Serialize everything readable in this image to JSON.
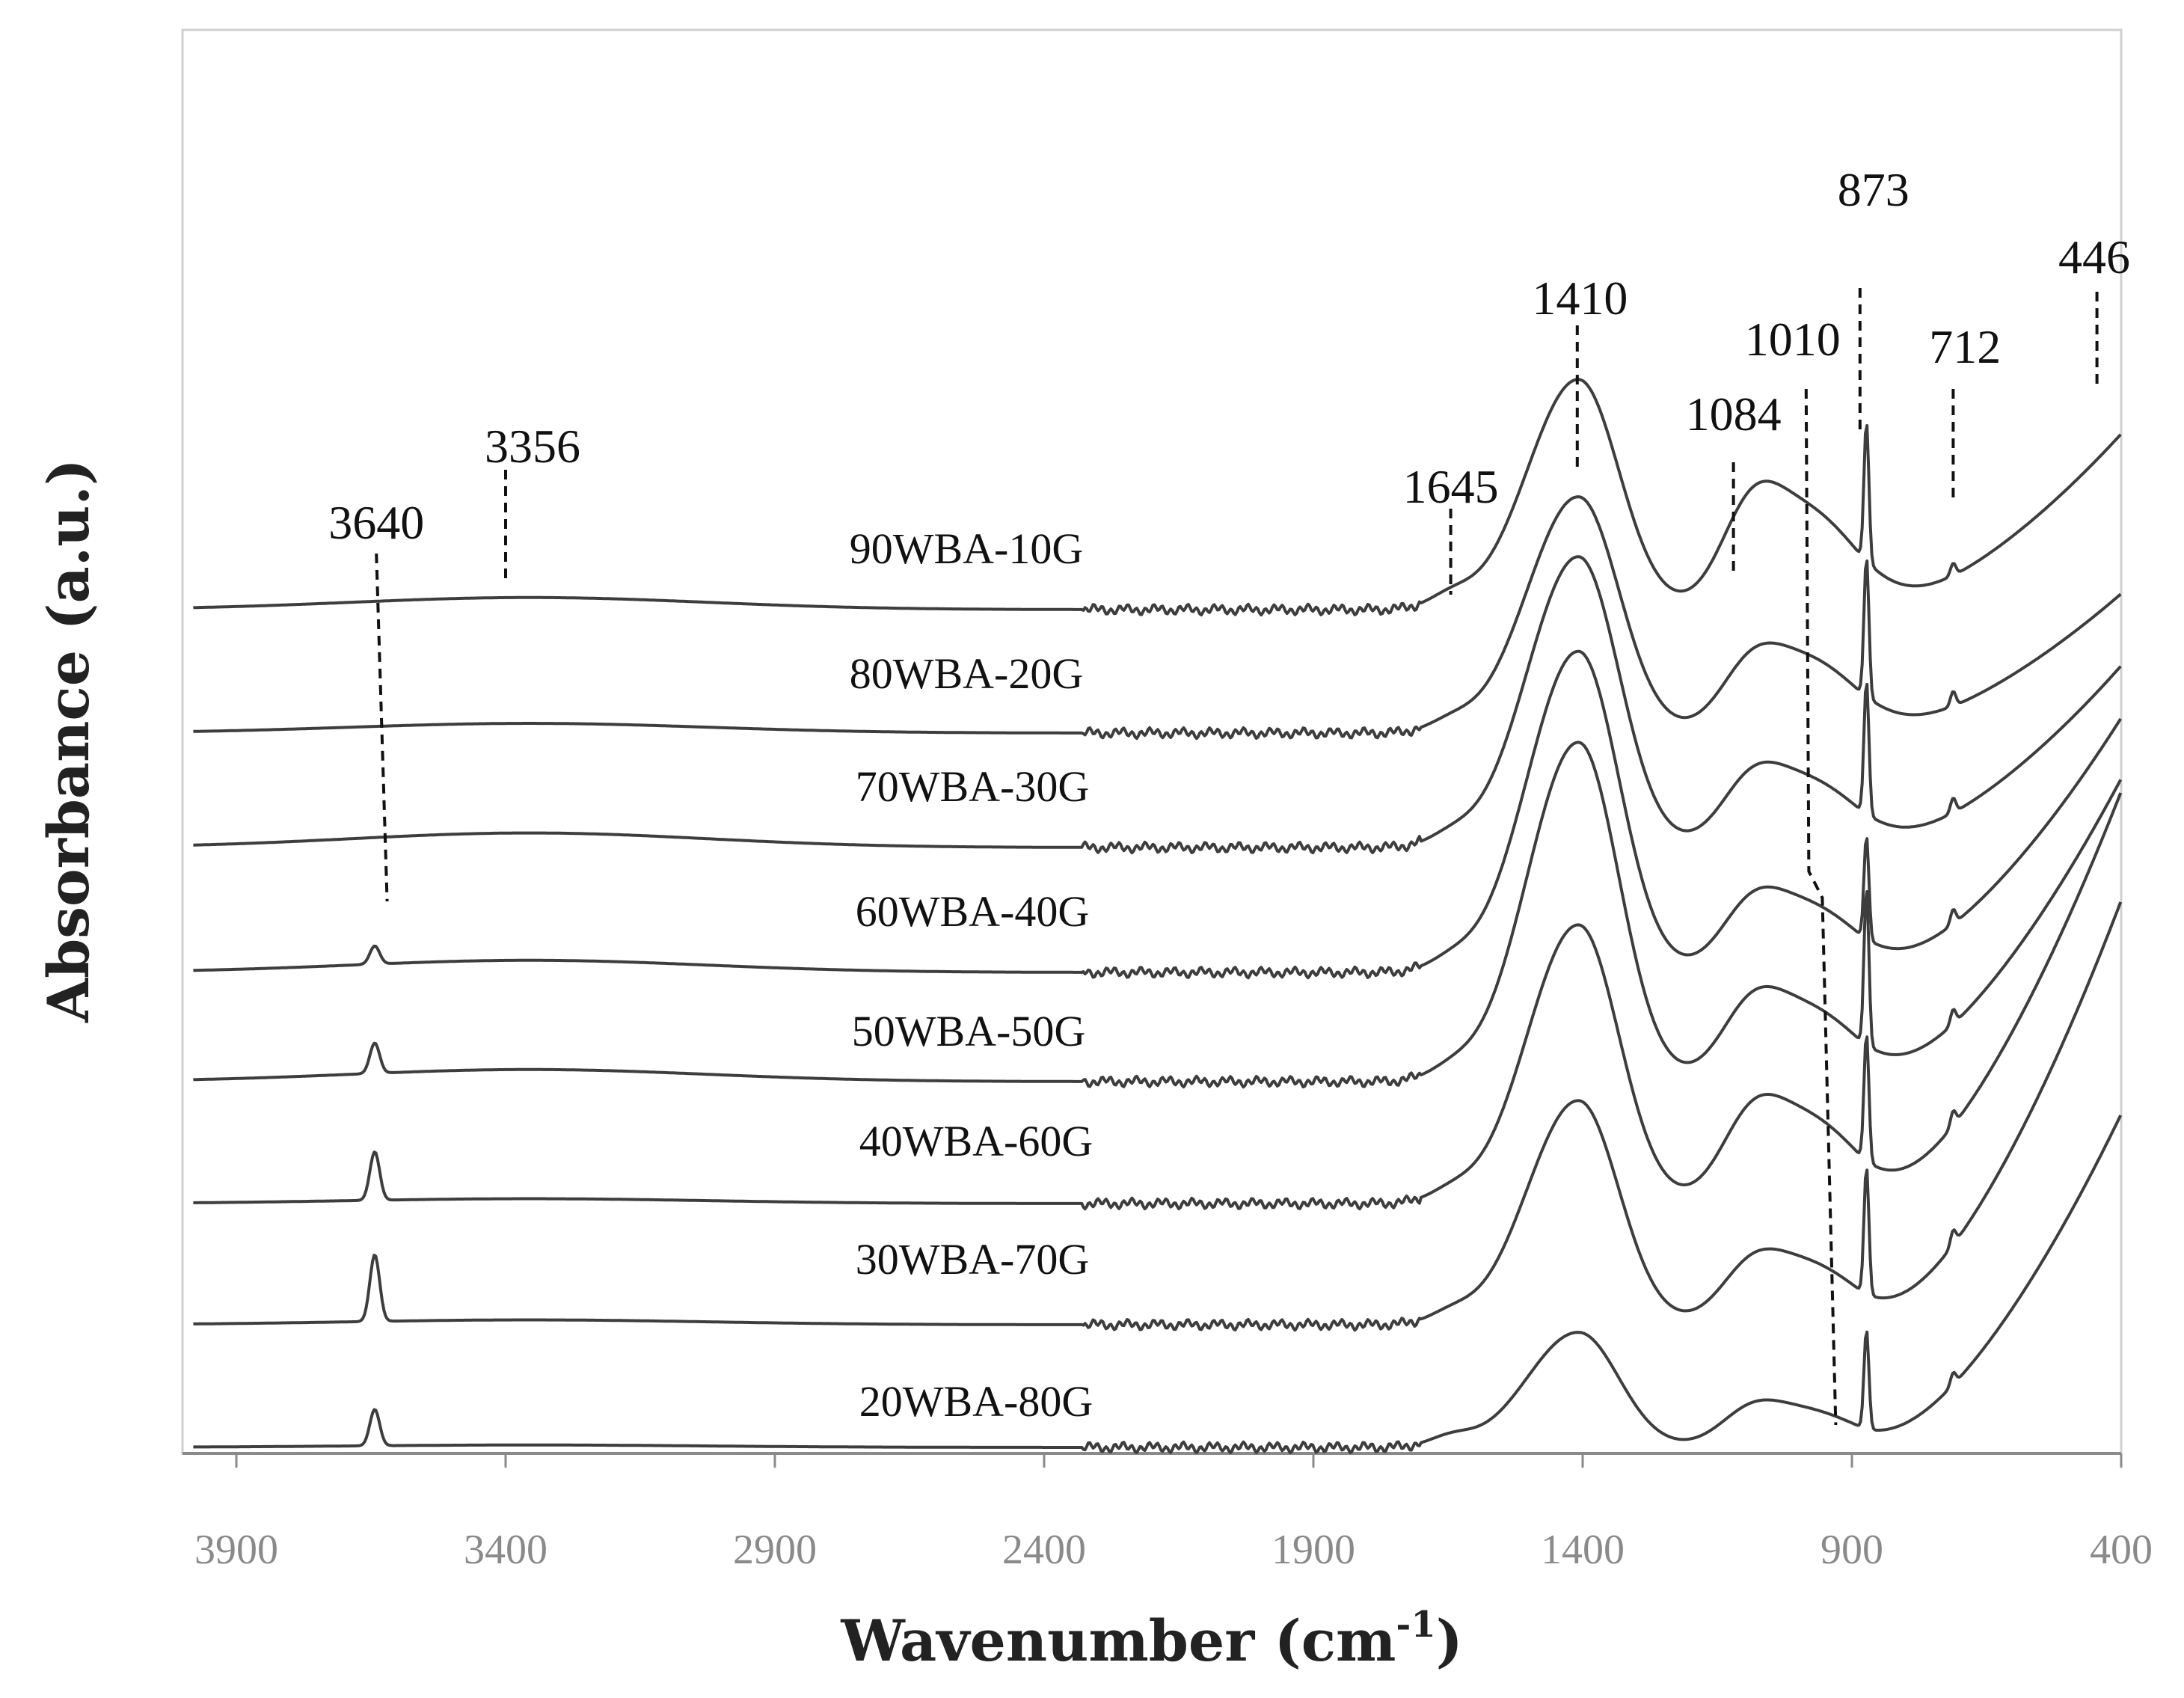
{
  "chart_data": {
    "type": "line",
    "title": "",
    "xlabel_main": "Wavenumber (cm",
    "xlabel_sup": "-1",
    "xlabel_end": ")",
    "ylabel": "Absorbance (a.u.)",
    "xlim": [
      4000,
      400
    ],
    "x_direction": "reversed",
    "y_units": "arbitrary, vertically offset",
    "x_ticks": [
      "3900",
      "3400",
      "2900",
      "2400",
      "1900",
      "1400",
      "900",
      "400"
    ],
    "x_tick_values": [
      3900,
      3400,
      2900,
      2400,
      1900,
      1400,
      900,
      400
    ],
    "grid": false,
    "legend": "inline labels",
    "offsets": [
      0,
      0.85,
      1.65,
      2.45,
      3.2,
      3.95,
      4.7,
      5.55
    ],
    "series": [
      {
        "name": "20WBA-80G",
        "peak_3640": 0.3,
        "broad_3356": 0.02,
        "band_1645": 0.08,
        "carbonate_1410": 0.95,
        "band_1084": 0.2,
        "band_1010": 0.3,
        "carbonate_873": 0.82,
        "band_712": 0.1,
        "band_446": 2.75,
        "baseline_shift": 0.0
      },
      {
        "name": "30WBA-70G",
        "peak_3640": 0.55,
        "broad_3356": 0.04,
        "band_1645": 0.08,
        "carbonate_1410": 1.85,
        "band_1084": 0.3,
        "band_1010": 0.5,
        "carbonate_873": 1.05,
        "band_712": 0.12,
        "band_446": 3.5,
        "baseline_shift": 0.0
      },
      {
        "name": "40WBA-60G",
        "peak_3640": 0.4,
        "broad_3356": 0.04,
        "band_1645": 0.08,
        "carbonate_1410": 2.3,
        "band_1084": 0.45,
        "band_1010": 0.7,
        "carbonate_873": 1.05,
        "band_712": 0.12,
        "band_446": 3.4,
        "baseline_shift": 0.0
      },
      {
        "name": "50WBA-50G",
        "peak_3640": 0.25,
        "broad_3356": 0.1,
        "band_1645": 0.08,
        "carbonate_1410": 2.8,
        "band_1084": 0.4,
        "band_1010": 0.6,
        "carbonate_873": 1.3,
        "band_712": 0.12,
        "band_446": 2.5,
        "baseline_shift": 0.0
      },
      {
        "name": "60WBA-40G",
        "peak_3640": 0.15,
        "broad_3356": 0.1,
        "band_1645": 0.08,
        "carbonate_1410": 2.65,
        "band_1084": 0.35,
        "band_1010": 0.55,
        "carbonate_873": 0.85,
        "band_712": 0.12,
        "band_446": 2.1,
        "baseline_shift": 0.0
      },
      {
        "name": "70WBA-30G",
        "peak_3640": 0.0,
        "broad_3356": 0.12,
        "band_1645": 0.08,
        "carbonate_1410": 2.4,
        "band_1084": 0.35,
        "band_1010": 0.55,
        "carbonate_873": 1.1,
        "band_712": 0.12,
        "band_446": 1.5,
        "baseline_shift": 0.0
      },
      {
        "name": "80WBA-20G",
        "peak_3640": 0.0,
        "broad_3356": 0.08,
        "band_1645": 0.08,
        "carbonate_1410": 1.95,
        "band_1084": 0.35,
        "band_1010": 0.6,
        "carbonate_873": 1.15,
        "band_712": 0.12,
        "band_446": 1.15,
        "baseline_shift": 0.0
      },
      {
        "name": "90WBA-10G",
        "peak_3640": 0.0,
        "broad_3356": 0.1,
        "band_1645": 0.1,
        "carbonate_1410": 1.9,
        "band_1084": 0.55,
        "band_1010": 0.8,
        "carbonate_873": 1.15,
        "band_712": 0.1,
        "band_446": 1.45,
        "baseline_shift": 0.0
      }
    ],
    "peak_annotations": [
      {
        "label": "3640",
        "x": 3640
      },
      {
        "label": "3356",
        "x": 3356
      },
      {
        "label": "1645",
        "x": 1645
      },
      {
        "label": "1410",
        "x": 1410
      },
      {
        "label": "1084",
        "x": 1084
      },
      {
        "label": "1010",
        "x": 1010
      },
      {
        "label": "873",
        "x": 873
      },
      {
        "label": "712",
        "x": 712
      },
      {
        "label": "446",
        "x": 446
      }
    ]
  }
}
